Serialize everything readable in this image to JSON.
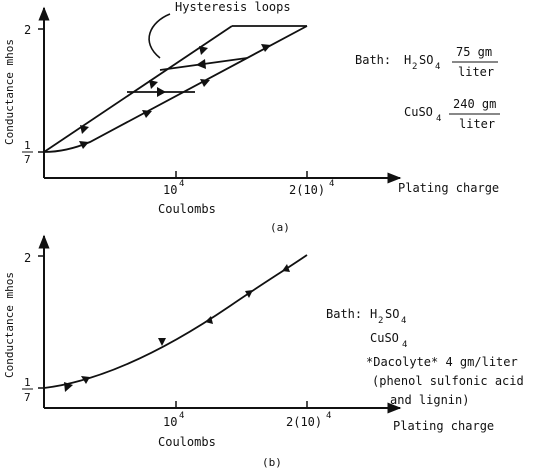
{
  "panel_a": {
    "caption": "(a)",
    "ylabel": "Conductance mhos",
    "y_tick_2": "2",
    "y_tick_frac_num": "1",
    "y_tick_frac_den": "7",
    "x_tick_1": "10",
    "x_tick_1_sup": "4",
    "x_tick_2": "2(10)",
    "x_tick_2_sup": "4",
    "xlabel_units": "Coulombs",
    "xlabel": "Plating charge",
    "annotation": "Hysteresis loops",
    "bath": {
      "label": "Bath:",
      "h2so4_h": "H",
      "h2so4_2": "2",
      "h2so4_so": "SO",
      "h2so4_4": "4",
      "h2so4_amount": "75 gm",
      "h2so4_unit": "liter",
      "cuso4_cu": "CuSO",
      "cuso4_4": "4",
      "cuso4_amount": "240 gm",
      "cuso4_unit": "liter"
    }
  },
  "panel_b": {
    "caption": "(b)",
    "ylabel": "Conductance mhos",
    "y_tick_2": "2",
    "y_tick_frac_num": "1",
    "y_tick_frac_den": "7",
    "x_tick_1": "10",
    "x_tick_1_sup": "4",
    "x_tick_2": "2(10)",
    "x_tick_2_sup": "4",
    "xlabel_units": "Coulombs",
    "xlabel": "Plating charge",
    "bath": {
      "label": "Bath:",
      "h2so4_h": "H",
      "h2so4_2": "2",
      "h2so4_so": "SO",
      "h2so4_4": "4",
      "cuso4_cu": "CuSO",
      "cuso4_4": "4",
      "dacolyte": "*Dacolyte* 4 gm/liter",
      "paren_line1": "(phenol sulfonic acid",
      "paren_line2": "and lignin)"
    }
  }
}
